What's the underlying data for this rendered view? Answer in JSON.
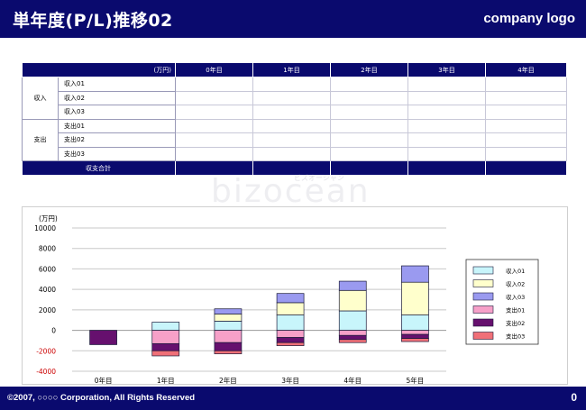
{
  "header": {
    "title": "単年度(P/L)推移02",
    "logo": "company logo"
  },
  "table": {
    "unit": "(万円)",
    "years": [
      "0年目",
      "1年目",
      "2年目",
      "3年目",
      "4年目",
      "5年目"
    ],
    "groups": [
      {
        "label": "収入",
        "items": [
          "収入01",
          "収入02",
          "収入03"
        ]
      },
      {
        "label": "支出",
        "items": [
          "支出01",
          "支出02",
          "支出03"
        ]
      }
    ],
    "total_label": "収支合計"
  },
  "chart_data": {
    "type": "bar",
    "stacked": true,
    "ylabel": "(万円)",
    "ylim": [
      -4000,
      10000
    ],
    "yticks": [
      10000,
      8000,
      6000,
      4000,
      2000,
      0,
      -2000,
      -4000
    ],
    "grid": true,
    "legend_position": "right",
    "categories": [
      "0年目",
      "1年目",
      "2年目",
      "3年目",
      "4年目",
      "5年目"
    ],
    "series": [
      {
        "name": "収入01",
        "color": "#c8f5fb",
        "values": [
          0,
          800,
          900,
          1500,
          1900,
          1500
        ]
      },
      {
        "name": "収入02",
        "color": "#ffffcc",
        "values": [
          0,
          0,
          700,
          1200,
          2000,
          3200
        ]
      },
      {
        "name": "収入03",
        "color": "#9a9af0",
        "values": [
          0,
          0,
          500,
          900,
          900,
          1600
        ]
      },
      {
        "name": "支出01",
        "color": "#f6a0c8",
        "values": [
          0,
          -1300,
          -1200,
          -700,
          -500,
          -400
        ]
      },
      {
        "name": "支出02",
        "color": "#66106e",
        "values": [
          -1400,
          -700,
          -800,
          -500,
          -400,
          -400
        ]
      },
      {
        "name": "支出03",
        "color": "#f07078",
        "values": [
          0,
          -500,
          -300,
          -300,
          -300,
          -300
        ]
      }
    ]
  },
  "watermark": {
    "main": "bizocean",
    "sub": "ビズオーシャン"
  },
  "footer": {
    "copyright": "©2007, ○○○○ Corporation, All Rights Reserved",
    "page": "0"
  }
}
